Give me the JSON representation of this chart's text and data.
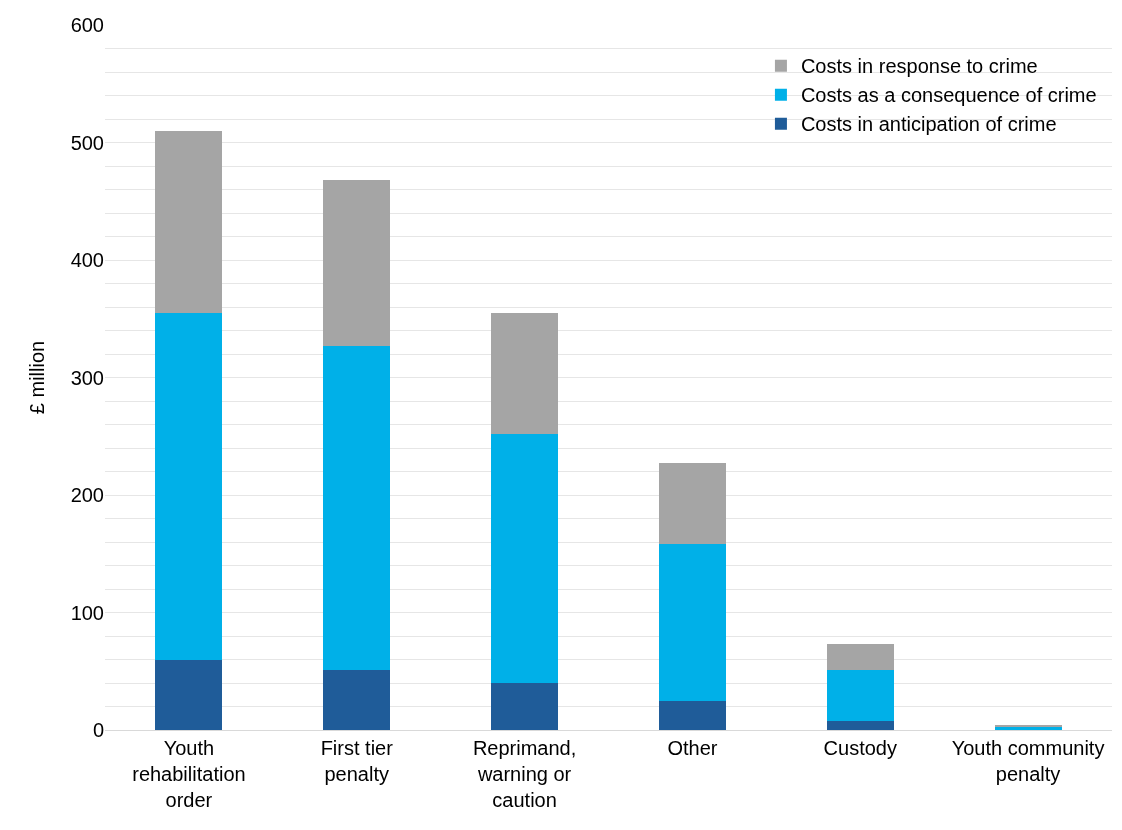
{
  "chart_data": {
    "type": "bar",
    "stacked": true,
    "ylabel": "£ million",
    "categories": [
      "Youth rehabilitation order",
      "First tier penalty",
      "Reprimand, warning or caution",
      "Other",
      "Custody",
      "Youth community penalty"
    ],
    "series": [
      {
        "name": "Costs in anticipation of crime",
        "color": "#1f5c99",
        "values": [
          60,
          51,
          40,
          25,
          8,
          null
        ]
      },
      {
        "name": "Costs as a consequence of crime",
        "color": "#00b0e8",
        "values": [
          295,
          276,
          212,
          133,
          43,
          3
        ]
      },
      {
        "name": "Costs in response to crime",
        "color": "#a5a5a5",
        "values": [
          155,
          141,
          103,
          69,
          22,
          1
        ]
      }
    ],
    "ylim": [
      0,
      600
    ],
    "yticks": [
      0,
      {
        "value": 20,
        "label": null
      },
      {
        "value": 40,
        "label": null
      },
      {
        "value": 60,
        "label": null
      },
      {
        "value": 80,
        "label": null
      },
      100,
      {
        "value": 120,
        "label": null
      },
      {
        "value": 140,
        "label": null
      },
      {
        "value": 160,
        "label": null
      },
      {
        "value": 180,
        "label": null
      },
      200,
      {
        "value": 220,
        "label": null
      },
      {
        "value": 240,
        "label": null
      },
      {
        "value": 260,
        "label": null
      },
      {
        "value": 280,
        "label": null
      },
      300,
      {
        "value": 320,
        "label": null
      },
      {
        "value": 340,
        "label": null
      },
      {
        "value": 360,
        "label": null
      },
      {
        "value": 380,
        "label": null
      },
      400,
      {
        "value": 420,
        "label": null
      },
      {
        "value": 440,
        "label": null
      },
      {
        "value": 460,
        "label": null
      },
      {
        "value": 480,
        "label": null
      },
      500,
      {
        "value": 520,
        "label": null
      },
      {
        "value": 540,
        "label": null
      },
      {
        "value": 560,
        "label": null
      },
      {
        "value": 580,
        "label": null
      },
      600
    ],
    "grid": "y",
    "legend": "top right"
  }
}
